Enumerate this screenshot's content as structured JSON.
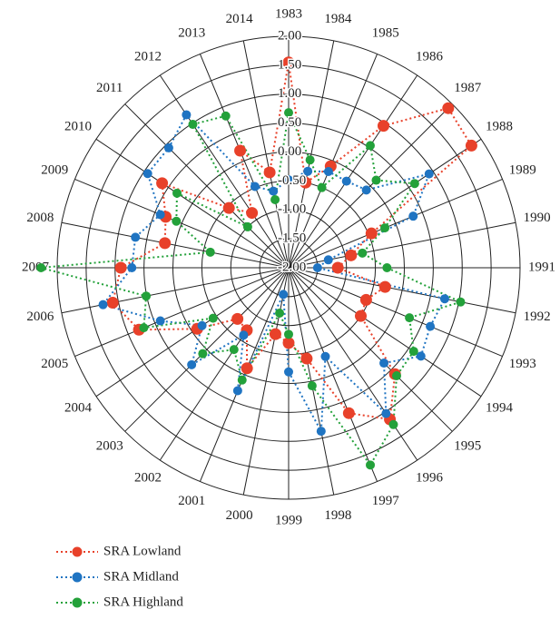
{
  "chart_data": {
    "type": "radar",
    "categories": [
      "1983",
      "1984",
      "1985",
      "1986",
      "1987",
      "1988",
      "1989",
      "1990",
      "1991",
      "1992",
      "1993",
      "1994",
      "1995",
      "1996",
      "1997",
      "1998",
      "1999",
      "2000",
      "2001",
      "2002",
      "2003",
      "2004",
      "2005",
      "2006",
      "2007",
      "2008",
      "2009",
      "2010",
      "2011",
      "2012",
      "2013",
      "2014"
    ],
    "ylim": [
      -2,
      2
    ],
    "yticks": [
      {
        "value": -2,
        "label": "-2.00"
      },
      {
        "value": -1.5,
        "label": "-1.50"
      },
      {
        "value": -1,
        "label": "-1.00"
      },
      {
        "value": -0.5,
        "label": "-0.50"
      },
      {
        "value": 0,
        "label": "0.00"
      },
      {
        "value": 0.5,
        "label": "0.50"
      },
      {
        "value": 1,
        "label": "1.00"
      },
      {
        "value": 1.5,
        "label": "1.50"
      },
      {
        "value": 2,
        "label": "2.00"
      }
    ],
    "grid": true,
    "legend": "bottom-left",
    "series": [
      {
        "name": "SRA Lowland",
        "color": "#e8412a",
        "values": [
          1.55,
          -0.5,
          -0.1,
          0.95,
          1.9,
          1.8,
          -0.45,
          -0.9,
          -1.15,
          -0.3,
          -0.55,
          -0.5,
          0.6,
          1.15,
          0.72,
          -0.4,
          -0.7,
          -0.83,
          -0.12,
          -0.7,
          -0.75,
          -0.1,
          0.8,
          1.1,
          0.9,
          0.18,
          0.3,
          0.63,
          -0.54,
          -0.86,
          0.19,
          -0.32
        ]
      },
      {
        "name": "SRA Midland",
        "color": "#1f74c2",
        "values": [
          -0.48,
          -0.3,
          -0.2,
          -0.2,
          -0.1,
          0.92,
          0.33,
          -1.3,
          -1.5,
          0.75,
          0.65,
          0.75,
          0.33,
          1.03,
          -0.34,
          0.88,
          -0.2,
          -1.53,
          0.3,
          -0.6,
          0.37,
          -0.2,
          0.4,
          1.27,
          0.71,
          0.7,
          0.4,
          0.93,
          0.93,
          1.18,
          -0.48,
          -0.65
        ]
      },
      {
        "name": "SRA Highland",
        "color": "#23a13a",
        "values": [
          0.68,
          -0.1,
          -0.5,
          0.54,
          0.14,
          0.62,
          -0.2,
          -0.7,
          -0.3,
          1.03,
          0.26,
          0.6,
          0.64,
          1.26,
          1.69,
          0.08,
          -0.85,
          -1.2,
          0.1,
          -0.3,
          0.1,
          -0.43,
          0.71,
          0.51,
          2.28,
          -0.62,
          0.1,
          0.32,
          -1.0,
          0.98,
          0.84,
          -0.8
        ]
      }
    ]
  }
}
